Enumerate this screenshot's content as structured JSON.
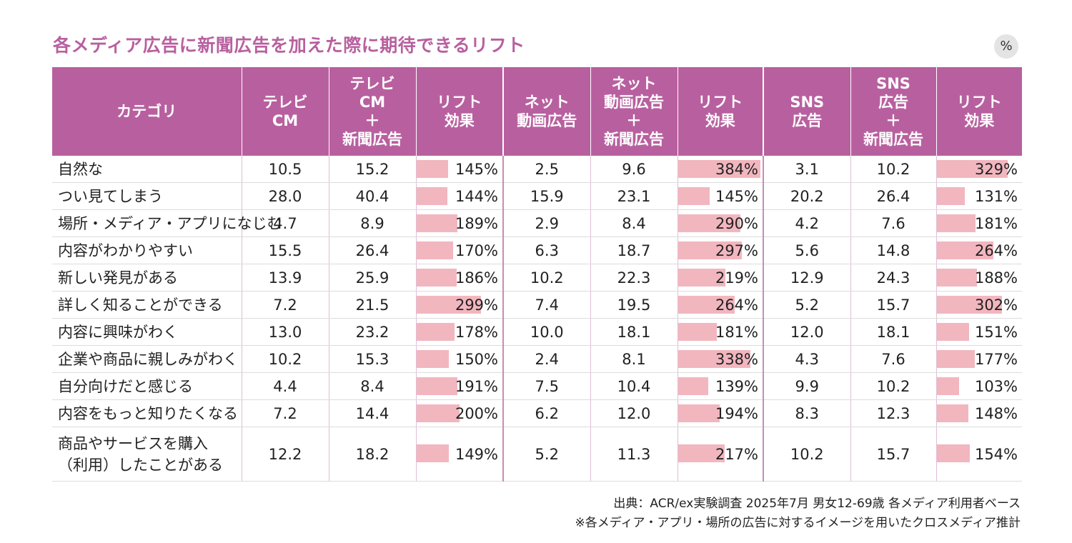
{
  "title": "各メディア広告に新聞広告を加えた際に期待できるリフト",
  "unit": "%",
  "source": "出典：ACR/ex実験調査 2025年7月 男女12-69歳 各メディア利用者ベース",
  "note": "※各メディア・アプリ・場所の広告に対するイメージを用いたクロスメディア推計",
  "chart_data": {
    "type": "table",
    "title": "各メディア広告に新聞広告を加えた際に期待できるリフト",
    "unit": "%",
    "columns": [
      [
        "カテゴリ"
      ],
      [
        "テレビ",
        "CM"
      ],
      [
        "テレビ",
        "CM",
        "＋",
        "新聞広告"
      ],
      [
        "リフト",
        "効果"
      ],
      [
        "ネット",
        "動画広告"
      ],
      [
        "ネット",
        "動画広告",
        "＋",
        "新聞広告"
      ],
      [
        "リフト",
        "効果"
      ],
      [
        "SNS",
        "広告"
      ],
      [
        "SNS",
        "広告",
        "＋",
        "新聞広告"
      ],
      [
        "リフト",
        "効果"
      ]
    ],
    "rows": [
      {
        "category": [
          "自然な"
        ],
        "tv": "10.5",
        "tv_np": "15.2",
        "tv_lift": "145%",
        "net": "2.5",
        "net_np": "9.6",
        "net_lift": "384%",
        "sns": "3.1",
        "sns_np": "10.2",
        "sns_lift": "329%"
      },
      {
        "category": [
          "つい見てしまう"
        ],
        "tv": "28.0",
        "tv_np": "40.4",
        "tv_lift": "144%",
        "net": "15.9",
        "net_np": "23.1",
        "net_lift": "145%",
        "sns": "20.2",
        "sns_np": "26.4",
        "sns_lift": "131%"
      },
      {
        "category": [
          "場所・メディア・アプリになじむ"
        ],
        "tv": "4.7",
        "tv_np": "8.9",
        "tv_lift": "189%",
        "net": "2.9",
        "net_np": "8.4",
        "net_lift": "290%",
        "sns": "4.2",
        "sns_np": "7.6",
        "sns_lift": "181%"
      },
      {
        "category": [
          "内容がわかりやすい"
        ],
        "tv": "15.5",
        "tv_np": "26.4",
        "tv_lift": "170%",
        "net": "6.3",
        "net_np": "18.7",
        "net_lift": "297%",
        "sns": "5.6",
        "sns_np": "14.8",
        "sns_lift": "264%"
      },
      {
        "category": [
          "新しい発見がある"
        ],
        "tv": "13.9",
        "tv_np": "25.9",
        "tv_lift": "186%",
        "net": "10.2",
        "net_np": "22.3",
        "net_lift": "219%",
        "sns": "12.9",
        "sns_np": "24.3",
        "sns_lift": "188%"
      },
      {
        "category": [
          "詳しく知ることができる"
        ],
        "tv": "7.2",
        "tv_np": "21.5",
        "tv_lift": "299%",
        "net": "7.4",
        "net_np": "19.5",
        "net_lift": "264%",
        "sns": "5.2",
        "sns_np": "15.7",
        "sns_lift": "302%"
      },
      {
        "category": [
          "内容に興味がわく"
        ],
        "tv": "13.0",
        "tv_np": "23.2",
        "tv_lift": "178%",
        "net": "10.0",
        "net_np": "18.1",
        "net_lift": "181%",
        "sns": "12.0",
        "sns_np": "18.1",
        "sns_lift": "151%"
      },
      {
        "category": [
          "企業や商品に親しみがわく"
        ],
        "tv": "10.2",
        "tv_np": "15.3",
        "tv_lift": "150%",
        "net": "2.4",
        "net_np": "8.1",
        "net_lift": "338%",
        "sns": "4.3",
        "sns_np": "7.6",
        "sns_lift": "177%"
      },
      {
        "category": [
          "自分向けだと感じる"
        ],
        "tv": "4.4",
        "tv_np": "8.4",
        "tv_lift": "191%",
        "net": "7.5",
        "net_np": "10.4",
        "net_lift": "139%",
        "sns": "9.9",
        "sns_np": "10.2",
        "sns_lift": "103%"
      },
      {
        "category": [
          "内容をもっと知りたくなる"
        ],
        "tv": "7.2",
        "tv_np": "14.4",
        "tv_lift": "200%",
        "net": "6.2",
        "net_np": "12.0",
        "net_lift": "194%",
        "sns": "8.3",
        "sns_np": "12.3",
        "sns_lift": "148%"
      },
      {
        "category": [
          "商品やサービスを購入",
          "（利用）したことがある"
        ],
        "tv": "12.2",
        "tv_np": "18.2",
        "tv_lift": "149%",
        "net": "5.2",
        "net_np": "11.3",
        "net_lift": "217%",
        "sns": "10.2",
        "sns_np": "15.7",
        "sns_lift": "154%"
      }
    ],
    "bar_max_value": 400
  }
}
